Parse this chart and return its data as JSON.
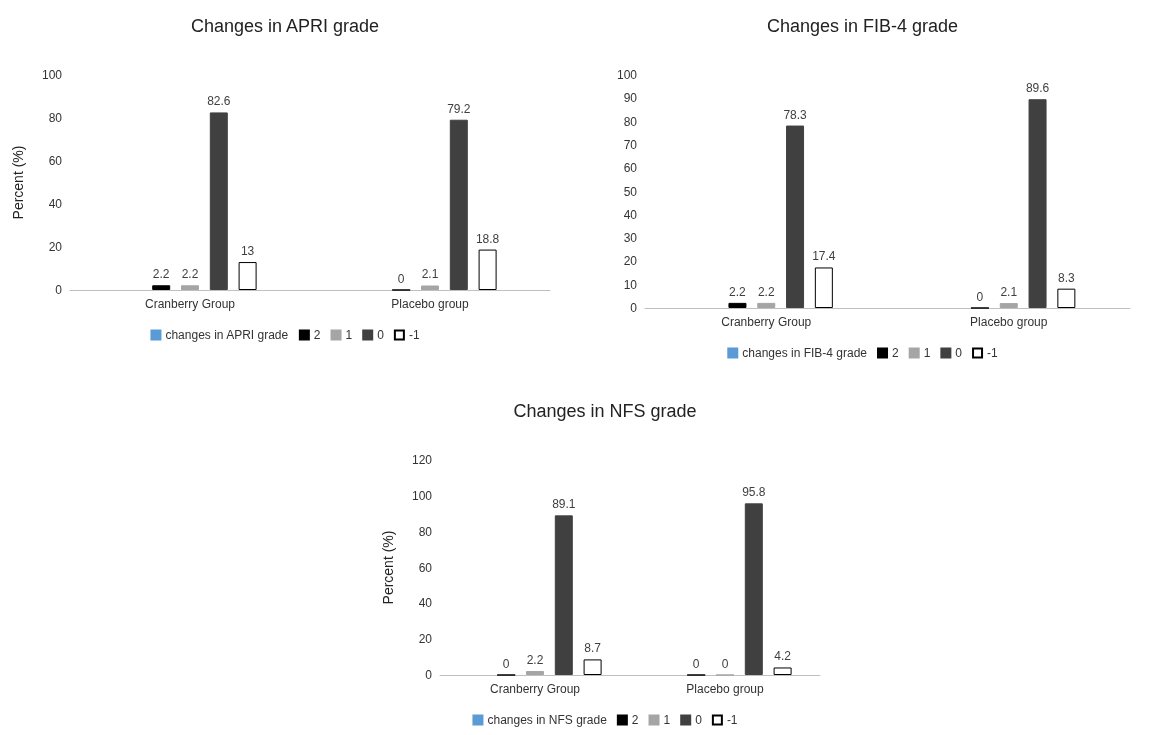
{
  "chart_data": [
    {
      "type": "bar",
      "title": "Changes in APRI grade",
      "ylabel": "Percent (%)",
      "categories": [
        "Cranberry Group",
        "Placebo group"
      ],
      "ylim": [
        0,
        100
      ],
      "yticks": [
        0,
        20,
        40,
        60,
        80,
        100
      ],
      "grid": false,
      "legend": "bottom",
      "data_labels": true,
      "series": [
        {
          "name": "changes in APRI grade",
          "color": "#5b9bd5",
          "values": [
            null,
            null
          ]
        },
        {
          "name": "2",
          "color": "#000000",
          "values": [
            2.2,
            0
          ]
        },
        {
          "name": "1",
          "color": "#a5a5a5",
          "values": [
            2.2,
            2.1
          ]
        },
        {
          "name": "0",
          "color": "#404040",
          "values": [
            82.6,
            79.2
          ]
        },
        {
          "name": "-1",
          "color": "#ffffff",
          "values": [
            13,
            18.8
          ]
        }
      ]
    },
    {
      "type": "bar",
      "title": "Changes in FIB-4 grade",
      "categories": [
        "Cranberry Group",
        "Placebo group"
      ],
      "ylim": [
        0,
        100
      ],
      "yticks": [
        0,
        10,
        20,
        30,
        40,
        50,
        60,
        70,
        80,
        90,
        100
      ],
      "grid": false,
      "legend": "bottom",
      "data_labels": true,
      "series": [
        {
          "name": "changes in FIB-4 grade",
          "color": "#5b9bd5",
          "values": [
            null,
            null
          ]
        },
        {
          "name": "2",
          "color": "#000000",
          "values": [
            2.2,
            0
          ]
        },
        {
          "name": "1",
          "color": "#a5a5a5",
          "values": [
            2.2,
            2.1
          ]
        },
        {
          "name": "0",
          "color": "#404040",
          "values": [
            78.3,
            89.6
          ]
        },
        {
          "name": "-1",
          "color": "#ffffff",
          "values": [
            17.4,
            8.3
          ]
        }
      ]
    },
    {
      "type": "bar",
      "title": "Changes in NFS grade",
      "ylabel": "Percent (%)",
      "categories": [
        "Cranberry Group",
        "Placebo group"
      ],
      "ylim": [
        0,
        120
      ],
      "yticks": [
        0,
        20,
        40,
        60,
        80,
        100,
        120
      ],
      "grid": false,
      "legend": "bottom",
      "data_labels": true,
      "series": [
        {
          "name": "changes in NFS grade",
          "color": "#5b9bd5",
          "values": [
            null,
            null
          ]
        },
        {
          "name": "2",
          "color": "#000000",
          "values": [
            0,
            0
          ]
        },
        {
          "name": "1",
          "color": "#a5a5a5",
          "values": [
            2.2,
            0
          ]
        },
        {
          "name": "0",
          "color": "#404040",
          "values": [
            89.1,
            95.8
          ]
        },
        {
          "name": "-1",
          "color": "#ffffff",
          "values": [
            8.7,
            4.2
          ]
        }
      ]
    }
  ]
}
